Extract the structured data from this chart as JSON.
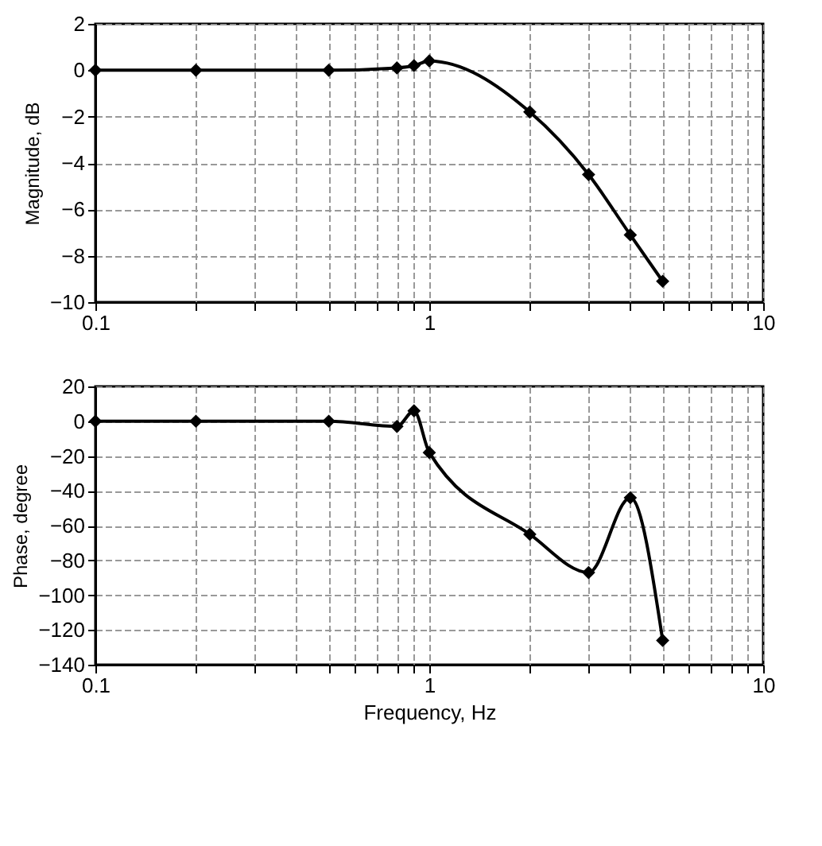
{
  "chart_data": [
    {
      "type": "line",
      "ylabel": "Magnitude, dB",
      "x": [
        0.1,
        0.2,
        0.5,
        0.8,
        0.9,
        1,
        2,
        3,
        4,
        5
      ],
      "series": [
        {
          "color": "#000000",
          "values": [
            0,
            0,
            0,
            0.1,
            0.2,
            0.4,
            -1.8,
            -4.5,
            -7.1,
            -9.1
          ]
        }
      ],
      "log": "x",
      "xlim": [
        0.1,
        10
      ],
      "xticks": [
        0.1,
        {
          "value": 0.2,
          "label": null
        },
        {
          "value": 0.3,
          "label": null
        },
        {
          "value": 0.4,
          "label": null
        },
        {
          "value": 0.5,
          "label": null
        },
        {
          "value": 0.6,
          "label": null
        },
        {
          "value": 0.7,
          "label": null
        },
        {
          "value": 0.8,
          "label": null
        },
        {
          "value": 0.9,
          "label": null
        },
        1,
        {
          "value": 2,
          "label": null
        },
        {
          "value": 3,
          "label": null
        },
        {
          "value": 4,
          "label": null
        },
        {
          "value": 5,
          "label": null
        },
        {
          "value": 6,
          "label": null
        },
        {
          "value": 7,
          "label": null
        },
        {
          "value": 8,
          "label": null
        },
        {
          "value": 9,
          "label": null
        },
        10
      ],
      "ylim": [
        -10,
        2
      ],
      "yticks": [
        -10,
        -8,
        -6,
        -4,
        -2,
        0,
        2
      ],
      "grid": true,
      "marker": "diamond",
      "line_style": "solid"
    },
    {
      "type": "line",
      "xlabel": "Frequency, Hz",
      "ylabel": "Phase, degree",
      "x": [
        0.1,
        0.2,
        0.5,
        0.8,
        0.9,
        1,
        2,
        3,
        4,
        5
      ],
      "series": [
        {
          "color": "#000000",
          "values": [
            0,
            0,
            0,
            -3,
            6,
            -18,
            -65,
            -87,
            -44,
            -126
          ]
        }
      ],
      "log": "x",
      "xlim": [
        0.1,
        10
      ],
      "xticks": [
        0.1,
        {
          "value": 0.2,
          "label": null
        },
        {
          "value": 0.3,
          "label": null
        },
        {
          "value": 0.4,
          "label": null
        },
        {
          "value": 0.5,
          "label": null
        },
        {
          "value": 0.6,
          "label": null
        },
        {
          "value": 0.7,
          "label": null
        },
        {
          "value": 0.8,
          "label": null
        },
        {
          "value": 0.9,
          "label": null
        },
        1,
        {
          "value": 2,
          "label": null
        },
        {
          "value": 3,
          "label": null
        },
        {
          "value": 4,
          "label": null
        },
        {
          "value": 5,
          "label": null
        },
        {
          "value": 6,
          "label": null
        },
        {
          "value": 7,
          "label": null
        },
        {
          "value": 8,
          "label": null
        },
        {
          "value": 9,
          "label": null
        },
        10
      ],
      "ylim": [
        -140,
        20
      ],
      "yticks": [
        -140,
        -120,
        -100,
        -80,
        -60,
        -40,
        -20,
        0,
        20
      ],
      "grid": true,
      "marker": "diamond",
      "line_style": "solid"
    }
  ]
}
